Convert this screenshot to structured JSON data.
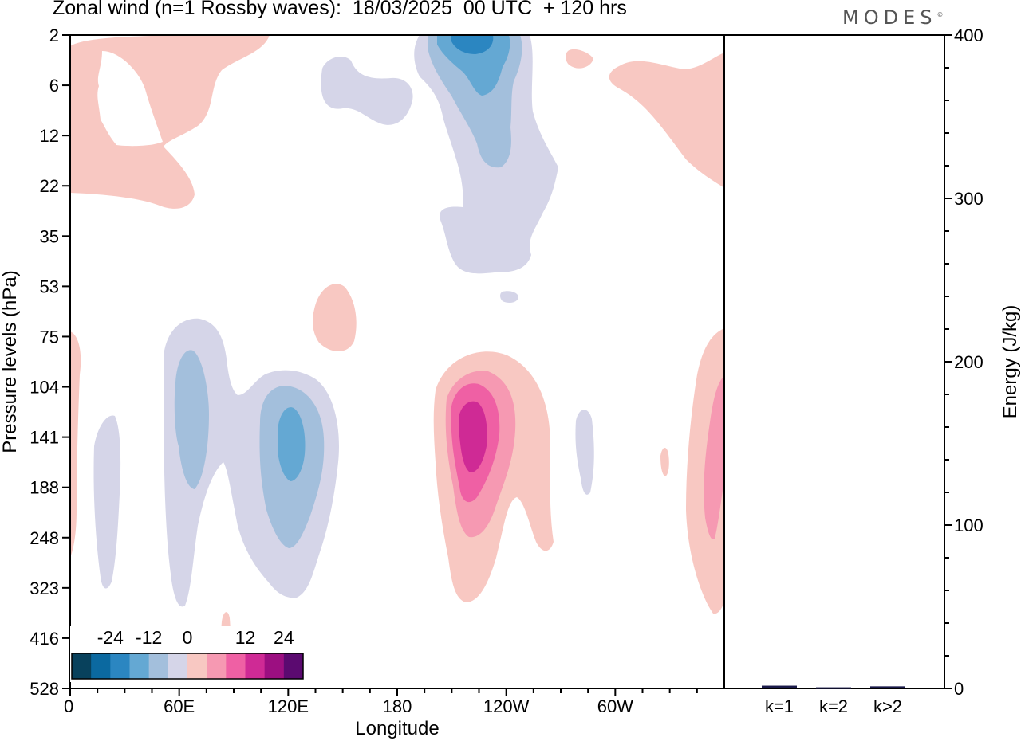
{
  "title": "Zonal wind (n=1 Rossby waves):  18/03/2025  00 UTC  + 120 hrs",
  "brand": "MODES",
  "brand_mark": "©",
  "colors": {
    "neg": [
      "#08415c",
      "#0b69a0",
      "#2b86c1",
      "#64a8d3",
      "#a3bfdc",
      "#d5d5e8"
    ],
    "pos": [
      "#f8c8c2",
      "#f699b2",
      "#ef60a4",
      "#cf2a95",
      "#9c0f81",
      "#5b0a70"
    ]
  },
  "chart_data": [
    {
      "type": "heatmap",
      "xlabel": "Longitude",
      "ylabel": "Pressure levels (hPa)",
      "x_ticks": [
        "0",
        "60E",
        "120E",
        "180",
        "120W",
        "60W"
      ],
      "x_tick_degrees": [
        0,
        60,
        120,
        180,
        240,
        300
      ],
      "xlim": [
        0,
        360
      ],
      "y_ticks": [
        "2",
        "6",
        "12",
        "22",
        "35",
        "53",
        "75",
        "104",
        "141",
        "188",
        "248",
        "323",
        "416",
        "528"
      ],
      "colorbar": {
        "levels": [
          -30,
          -24,
          -18,
          -12,
          -6,
          -3,
          3,
          6,
          12,
          18,
          24,
          30
        ],
        "labels": [
          "-24",
          "-12",
          "0",
          "12",
          "24"
        ],
        "label_values": [
          -24,
          -12,
          0,
          12,
          24
        ]
      }
    },
    {
      "type": "bar",
      "ylabel": "Energy (J/kg)",
      "categories": [
        "k=1",
        "k=2",
        "k>2"
      ],
      "values": [
        1.2,
        0.2,
        0.8
      ],
      "ylim": [
        0,
        400
      ],
      "y_ticks": [
        "0",
        "100",
        "200",
        "300",
        "400"
      ]
    }
  ]
}
